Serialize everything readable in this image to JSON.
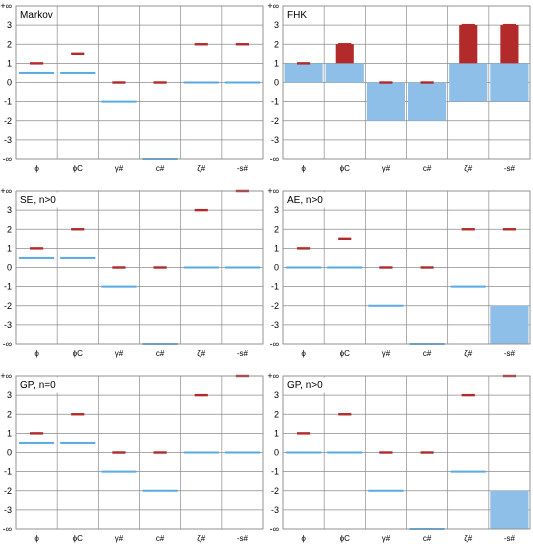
{
  "colors": {
    "interval_bar": "#8dbfe8",
    "blue_marker": "#5aaae2",
    "red_marker": "#b22a2a"
  },
  "chart_data": [
    {
      "type": "bar",
      "title": "Markov",
      "categories": [
        "ϕ",
        "ϕC",
        "γ#",
        "c#",
        "ζ#",
        "-s#"
      ],
      "ytick_labels": [
        "+∞",
        "3",
        "2",
        "1",
        "0",
        "-1",
        "-2",
        "-3",
        "-∞"
      ],
      "ylim": [
        "-∞",
        "+∞"
      ],
      "blue_values": [
        0.5,
        0.5,
        -1,
        "-∞",
        0,
        0
      ],
      "red_values": [
        1,
        1.5,
        0,
        0,
        2,
        2
      ],
      "intervals": []
    },
    {
      "type": "bar",
      "title": "FHK",
      "categories": [
        "ϕ",
        "ϕC",
        "γ#",
        "c#",
        "ζ#",
        "-s#"
      ],
      "ytick_labels": [
        "+∞",
        "3",
        "2",
        "1",
        "0",
        "-1",
        "-2",
        "-3",
        "-∞"
      ],
      "ylim": [
        "-∞",
        "+∞"
      ],
      "blue_values": [],
      "red_values": [
        1,
        2,
        0,
        0,
        3,
        3
      ],
      "intervals": [
        {
          "category": "ϕ",
          "low": 0,
          "high": 1
        },
        {
          "category": "ϕC",
          "low": 0,
          "high": 1
        },
        {
          "category": "γ#",
          "low": -2,
          "high": 0
        },
        {
          "category": "c#",
          "low": -2,
          "high": 0
        },
        {
          "category": "ζ#",
          "low": -1,
          "high": 1
        },
        {
          "category": "-s#",
          "low": -1,
          "high": 1
        }
      ]
    },
    {
      "type": "bar",
      "title": "SE, n>0",
      "categories": [
        "ϕ",
        "ϕC",
        "γ#",
        "c#",
        "ζ#",
        "-s#"
      ],
      "ytick_labels": [
        "+∞",
        "3",
        "2",
        "1",
        "0",
        "-1",
        "-2",
        "-3",
        "-∞"
      ],
      "ylim": [
        "-∞",
        "+∞"
      ],
      "blue_values": [
        0.5,
        0.5,
        -1,
        "-∞",
        0,
        0
      ],
      "red_values": [
        1,
        2,
        0,
        0,
        3,
        "+∞"
      ],
      "intervals": []
    },
    {
      "type": "bar",
      "title": "AE, n>0",
      "categories": [
        "ϕ",
        "ϕC",
        "γ#",
        "c#",
        "ζ#",
        "-s#"
      ],
      "ytick_labels": [
        "+∞",
        "3",
        "2",
        "1",
        "0",
        "-1",
        "-2",
        "-3",
        "-∞"
      ],
      "ylim": [
        "-∞",
        "+∞"
      ],
      "blue_values": [
        0,
        0,
        -2,
        "-∞",
        -1,
        null
      ],
      "red_values": [
        1,
        1.5,
        0,
        0,
        2,
        2
      ],
      "intervals": [
        {
          "category": "-s#",
          "low": "-∞",
          "high": -2
        }
      ]
    },
    {
      "type": "bar",
      "title": "GP, n=0",
      "categories": [
        "ϕ",
        "ϕC",
        "γ#",
        "c#",
        "ζ#",
        "-s#"
      ],
      "ytick_labels": [
        "+∞",
        "3",
        "2",
        "1",
        "0",
        "-1",
        "-2",
        "-3",
        "-∞"
      ],
      "ylim": [
        "-∞",
        "+∞"
      ],
      "blue_values": [
        0.5,
        0.5,
        -1,
        -2,
        0,
        0
      ],
      "red_values": [
        1,
        2,
        0,
        0,
        3,
        "+∞"
      ],
      "intervals": []
    },
    {
      "type": "bar",
      "title": "GP, n>0",
      "categories": [
        "ϕ",
        "ϕC",
        "γ#",
        "c#",
        "ζ#",
        "-s#"
      ],
      "ytick_labels": [
        "+∞",
        "3",
        "2",
        "1",
        "0",
        "-1",
        "-2",
        "-3",
        "-∞"
      ],
      "ylim": [
        "-∞",
        "+∞"
      ],
      "blue_values": [
        0,
        0,
        -2,
        "-∞",
        -1,
        null
      ],
      "red_values": [
        1,
        2,
        0,
        0,
        3,
        "+∞"
      ],
      "intervals": [
        {
          "category": "-s#",
          "low": "-∞",
          "high": -2
        }
      ]
    }
  ]
}
